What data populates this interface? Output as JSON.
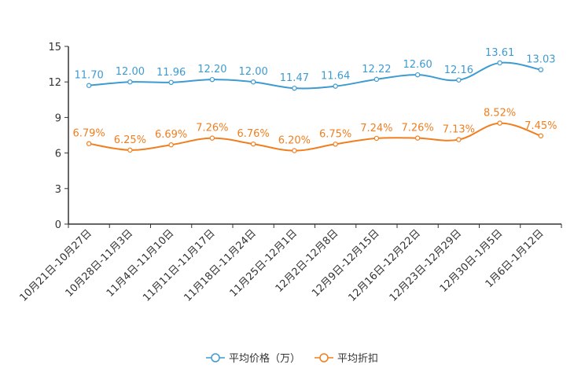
{
  "chart_data": {
    "type": "line",
    "title": "",
    "xlabel": "",
    "ylabel": "",
    "ylim": [
      0,
      15
    ],
    "yticks": [
      0,
      3,
      6,
      9,
      12,
      15
    ],
    "grid": false,
    "legend_position": "bottom",
    "categories": [
      "10月21日-10月27日",
      "10月28日-11月3日",
      "11月4日-11月10日",
      "11月11日-11月17日",
      "11月18日-11月24日",
      "11月25日-12月1日",
      "12月2日-12月8日",
      "12月9日-12月15日",
      "12月16日-12月22日",
      "12月23日-12月29日",
      "12月30日-1月5日",
      "1月6日-1月12日"
    ],
    "series": [
      {
        "name": "平均价格（万）",
        "color": "#3d9bd1",
        "values": [
          11.7,
          12.0,
          11.96,
          12.2,
          12.0,
          11.47,
          11.64,
          12.22,
          12.6,
          12.16,
          13.61,
          13.03
        ],
        "labels": [
          "11.70",
          "12.00",
          "11.96",
          "12.20",
          "12.00",
          "11.47",
          "11.64",
          "12.22",
          "12.60",
          "12.16",
          "13.61",
          "13.03"
        ]
      },
      {
        "name": "平均折扣",
        "color": "#f07f1f",
        "values": [
          6.79,
          6.25,
          6.69,
          7.26,
          6.76,
          6.2,
          6.75,
          7.24,
          7.26,
          7.13,
          8.52,
          7.45
        ],
        "labels": [
          "6.79%",
          "6.25%",
          "6.69%",
          "7.26%",
          "6.76%",
          "6.20%",
          "6.75%",
          "7.24%",
          "7.26%",
          "7.13%",
          "8.52%",
          "7.45%"
        ]
      }
    ]
  }
}
